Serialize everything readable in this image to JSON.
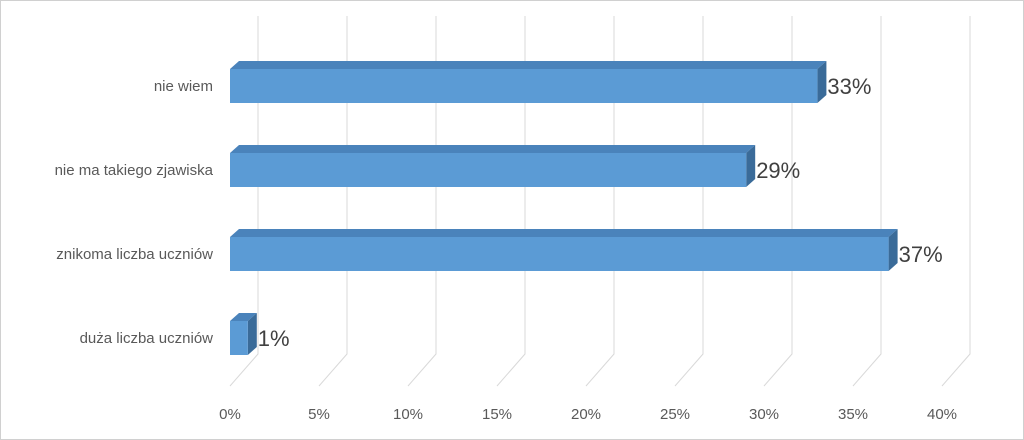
{
  "chart_data": {
    "type": "bar",
    "orientation": "horizontal",
    "style": "3d",
    "categories": [
      "nie wiem",
      "nie ma takiego zjawiska",
      "znikoma liczba uczniów",
      "duża liczba uczniów"
    ],
    "values": [
      33,
      29,
      37,
      1
    ],
    "data_labels": [
      "33%",
      "29%",
      "37%",
      "1%"
    ],
    "x_ticks": [
      "0%",
      "5%",
      "10%",
      "15%",
      "20%",
      "25%",
      "30%",
      "35%",
      "40%"
    ],
    "xlim": [
      0,
      40
    ],
    "title": "",
    "xlabel": "",
    "ylabel": "",
    "grid": true,
    "legend": "none",
    "colors": {
      "bar_front": "#5b9bd5",
      "bar_top": "#4a83bb",
      "bar_side": "#3a6b99",
      "grid": "#d9d9d9"
    }
  }
}
